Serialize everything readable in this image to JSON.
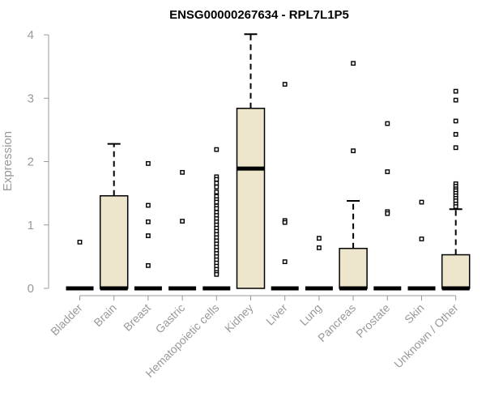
{
  "chart_data": {
    "type": "box",
    "title": "ENSG00000267634 - RPL7L1P5",
    "ylabel": "Expression",
    "xlabel": "",
    "ylim": [
      0,
      4
    ],
    "yticks": [
      0,
      1,
      2,
      3,
      4
    ],
    "grid": false,
    "colors": {
      "box_fill": "#ede6cd",
      "box_stroke": "#000000",
      "axis": "#999999"
    },
    "categories": [
      "Bladder",
      "Brain",
      "Breast",
      "Gastric",
      "Hematopoietic cells",
      "Kidney",
      "Liver",
      "Lung",
      "Pancreas",
      "Prostate",
      "Skin",
      "Unknown / Other"
    ],
    "boxes": [
      {
        "category": "Bladder",
        "q1": 0,
        "median": 0,
        "q3": 0,
        "whisker_low": 0,
        "whisker_high": 0,
        "outliers": [
          0.73
        ]
      },
      {
        "category": "Brain",
        "q1": 0,
        "median": 0,
        "q3": 1.46,
        "whisker_low": 0,
        "whisker_high": 2.28,
        "outliers": []
      },
      {
        "category": "Breast",
        "q1": 0,
        "median": 0,
        "q3": 0,
        "whisker_low": 0,
        "whisker_high": 0,
        "outliers": [
          1.97,
          1.31,
          1.05,
          0.83,
          0.36
        ]
      },
      {
        "category": "Gastric",
        "q1": 0,
        "median": 0,
        "q3": 0,
        "whisker_low": 0,
        "whisker_high": 0,
        "outliers": [
          1.83,
          1.06
        ]
      },
      {
        "category": "Hematopoietic cells",
        "q1": 0,
        "median": 0,
        "q3": 0,
        "whisker_low": 0,
        "whisker_high": 0,
        "outliers": [
          2.19,
          1.76,
          1.72,
          1.66,
          1.6,
          1.52,
          1.45,
          1.4,
          1.36,
          1.3,
          1.26,
          1.2,
          1.15,
          1.1,
          1.05,
          1.0,
          0.95,
          0.9,
          0.85,
          0.8,
          0.75,
          0.7,
          0.65,
          0.6,
          0.55,
          0.5,
          0.45,
          0.4,
          0.35,
          0.3,
          0.25,
          0.22
        ]
      },
      {
        "category": "Kidney",
        "q1": 0,
        "median": 1.89,
        "q3": 2.84,
        "whisker_low": 0,
        "whisker_high": 4.01,
        "outliers": []
      },
      {
        "category": "Liver",
        "q1": 0,
        "median": 0,
        "q3": 0,
        "whisker_low": 0,
        "whisker_high": 0,
        "outliers": [
          3.22,
          1.07,
          1.04,
          0.42
        ]
      },
      {
        "category": "Lung",
        "q1": 0,
        "median": 0,
        "q3": 0,
        "whisker_low": 0,
        "whisker_high": 0,
        "outliers": [
          0.79,
          0.64
        ]
      },
      {
        "category": "Pancreas",
        "q1": 0,
        "median": 0,
        "q3": 0.63,
        "whisker_low": 0,
        "whisker_high": 1.38,
        "outliers": [
          3.55,
          2.17
        ]
      },
      {
        "category": "Prostate",
        "q1": 0,
        "median": 0,
        "q3": 0,
        "whisker_low": 0,
        "whisker_high": 0,
        "outliers": [
          2.6,
          1.84,
          1.21,
          1.18
        ]
      },
      {
        "category": "Skin",
        "q1": 0,
        "median": 0,
        "q3": 0,
        "whisker_low": 0,
        "whisker_high": 0,
        "outliers": [
          1.36,
          0.78
        ]
      },
      {
        "category": "Unknown / Other",
        "q1": 0,
        "median": 0,
        "q3": 0.53,
        "whisker_low": 0,
        "whisker_high": 1.25,
        "outliers": [
          3.11,
          2.97,
          2.64,
          2.43,
          2.22,
          1.65,
          1.61,
          1.57,
          1.54,
          1.5,
          1.46,
          1.42,
          1.38,
          1.33,
          1.29
        ]
      }
    ]
  }
}
